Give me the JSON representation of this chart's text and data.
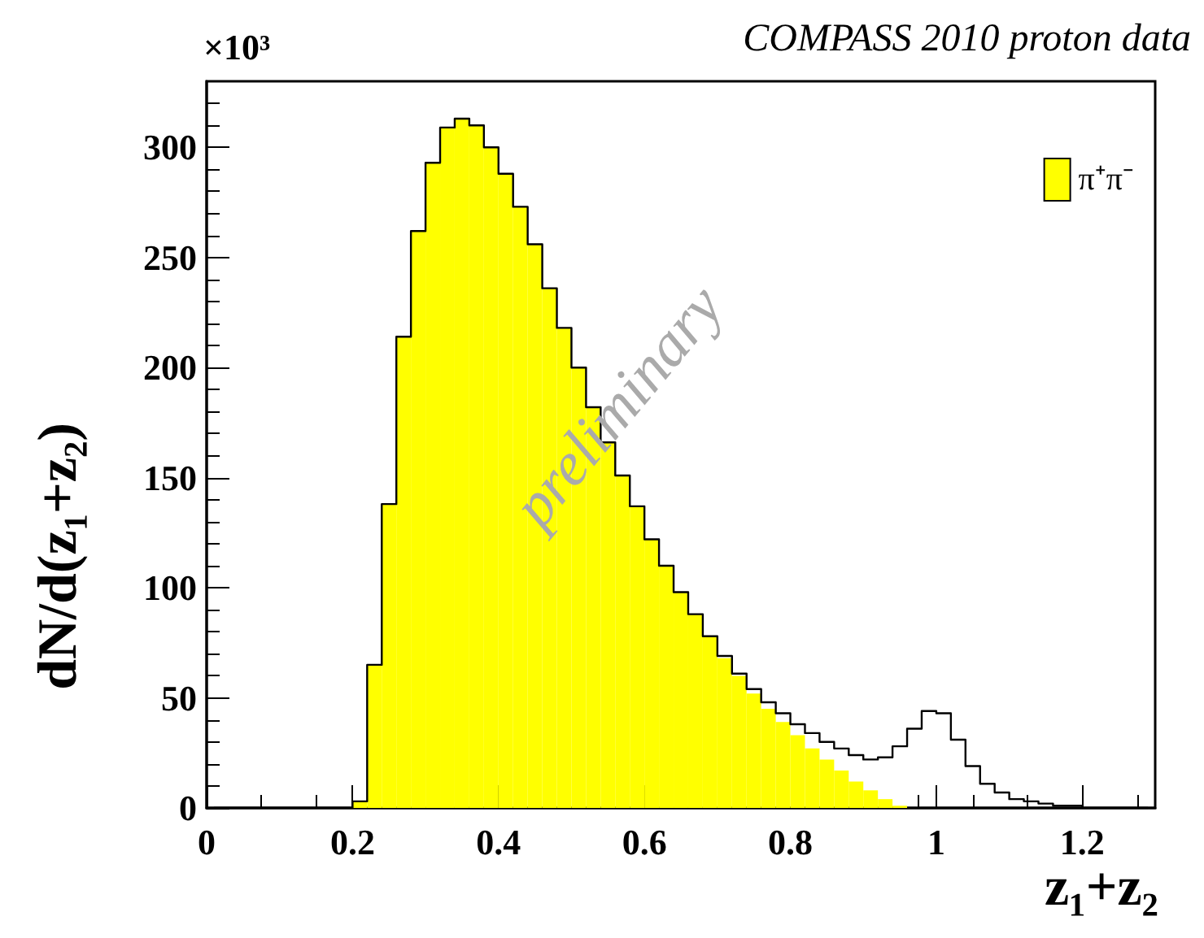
{
  "chart_data": {
    "type": "histogram",
    "title": "COMPASS 2010 proton data",
    "xlabel": "z₁+z₂",
    "ylabel": "dN/d(z₁+z₂)",
    "annotations": [
      "×10³",
      "preliminary"
    ],
    "bins": [
      0,
      0.02,
      0.04,
      0.06,
      0.08,
      0.1,
      0.12,
      0.14,
      0.16,
      0.18,
      0.2,
      0.22,
      0.24,
      0.26,
      0.28,
      0.3,
      0.32,
      0.34,
      0.36,
      0.38,
      0.4,
      0.42,
      0.44,
      0.46,
      0.48,
      0.5,
      0.52,
      0.54,
      0.56,
      0.58,
      0.6,
      0.62,
      0.64,
      0.66,
      0.68,
      0.7,
      0.72,
      0.74,
      0.76,
      0.78,
      0.8,
      0.82,
      0.84,
      0.86,
      0.88,
      0.9,
      0.92,
      0.94,
      0.96,
      0.98,
      1,
      1.02,
      1.04,
      1.06,
      1.08,
      1.1,
      1.12,
      1.14,
      1.16,
      1.18,
      1.2,
      1.22,
      1.24,
      1.26,
      1.28,
      1.3
    ],
    "series": [
      {
        "name": "π⁺π⁻",
        "color": "#ffff00",
        "values": [
          0,
          0,
          0,
          0,
          0,
          0,
          0,
          0,
          0,
          0,
          3,
          65,
          138,
          214,
          262,
          293,
          309,
          313,
          310,
          300,
          288,
          273,
          256,
          236,
          218,
          200,
          182,
          166,
          151,
          137,
          122,
          110,
          98,
          88,
          78,
          68,
          60,
          52,
          45,
          39,
          33,
          27,
          22,
          17,
          12,
          8,
          4,
          1,
          0,
          0,
          0,
          0,
          0,
          0,
          0,
          0,
          0,
          0,
          0,
          0,
          0,
          0,
          0,
          0,
          0
        ]
      },
      {
        "type": "step",
        "color": "#000000",
        "x": [
          0.01,
          0.03,
          0.05,
          0.07,
          0.09,
          0.11,
          0.13,
          0.15,
          0.17,
          0.19,
          0.21,
          0.23,
          0.25,
          0.27,
          0.29,
          0.31,
          0.33,
          0.35,
          0.37,
          0.39,
          0.41,
          0.43,
          0.45,
          0.47,
          0.49,
          0.51,
          0.53,
          0.55,
          0.57,
          0.59,
          0.61,
          0.63,
          0.65,
          0.67,
          0.69,
          0.71,
          0.73,
          0.75,
          0.77,
          0.79,
          0.81,
          0.83,
          0.85,
          0.87,
          0.89,
          0.91,
          0.93,
          0.95,
          0.97,
          0.99,
          1.01,
          1.03,
          1.05,
          1.07,
          1.09,
          1.11,
          1.13,
          1.15,
          1.17,
          1.19,
          1.21,
          1.23,
          1.25,
          1.27,
          1.29
        ],
        "values": [
          0,
          0,
          0,
          0,
          0,
          0,
          0,
          0,
          0,
          0,
          3,
          65,
          138,
          214,
          262,
          293,
          309,
          313,
          310,
          300,
          288,
          273,
          256,
          236,
          218,
          200,
          182,
          166,
          151,
          137,
          122,
          110,
          98,
          88,
          78,
          69,
          61,
          54,
          48,
          43,
          38,
          34,
          30,
          27,
          24,
          22,
          23,
          28,
          36,
          44,
          43,
          31,
          19,
          11,
          7,
          4,
          3,
          2,
          1,
          1,
          0,
          0,
          0,
          0,
          0
        ]
      }
    ],
    "xlim": [
      0,
      1.3
    ],
    "xticks": [
      0,
      0.2,
      0.4,
      0.6,
      0.8,
      1,
      1.2
    ],
    "ylim": [
      0,
      330
    ],
    "yticks": [
      0,
      50,
      100,
      150,
      200,
      250,
      300
    ],
    "grid": false,
    "legend": "top right"
  }
}
